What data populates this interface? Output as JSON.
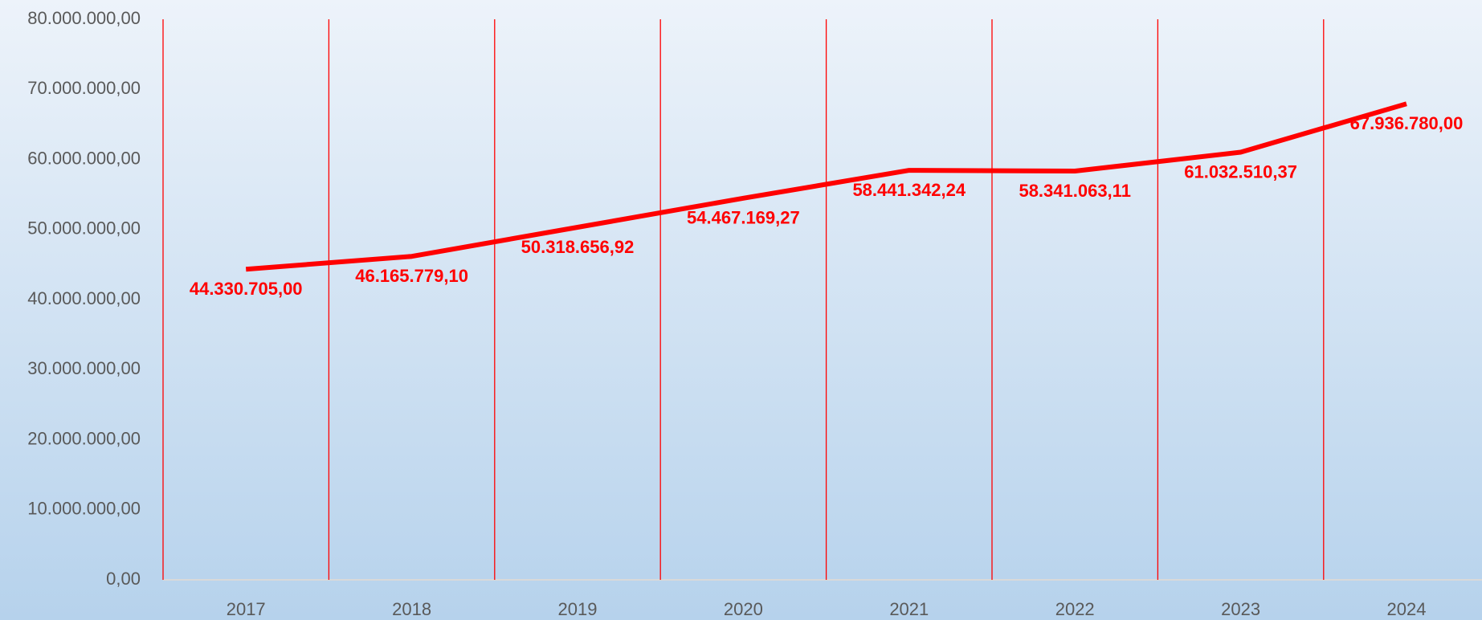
{
  "chart_data": {
    "type": "line",
    "categories": [
      "2017",
      "2018",
      "2019",
      "2020",
      "2021",
      "2022",
      "2023",
      "2024"
    ],
    "series": [
      {
        "color": "#ff0000",
        "values": [
          44330705.0,
          46165779.1,
          50318656.92,
          54467169.27,
          58441342.24,
          58341063.11,
          61032510.37,
          67936780.0
        ],
        "value_labels": [
          "44.330.705,00",
          "46.165.779,10",
          "50.318.656,92",
          "54.467.169,27",
          "58.441.342,24",
          "58.341.063,11",
          "61.032.510,37",
          "67.936.780,00"
        ]
      }
    ],
    "ylim": [
      0,
      80000000
    ],
    "yticks": [
      {
        "value": 0,
        "label": "0,00"
      },
      {
        "value": 10000000,
        "label": "10.000.000,00"
      },
      {
        "value": 20000000,
        "label": "20.000.000,00"
      },
      {
        "value": 30000000,
        "label": "30.000.000,00"
      },
      {
        "value": 40000000,
        "label": "40.000.000,00"
      },
      {
        "value": 50000000,
        "label": "50.000.000,00"
      },
      {
        "value": 60000000,
        "label": "60.000.000,00"
      },
      {
        "value": 70000000,
        "label": "70.000.000,00"
      },
      {
        "value": 80000000,
        "label": "80.000.000,00"
      }
    ],
    "grid_color": "#ff0000"
  }
}
